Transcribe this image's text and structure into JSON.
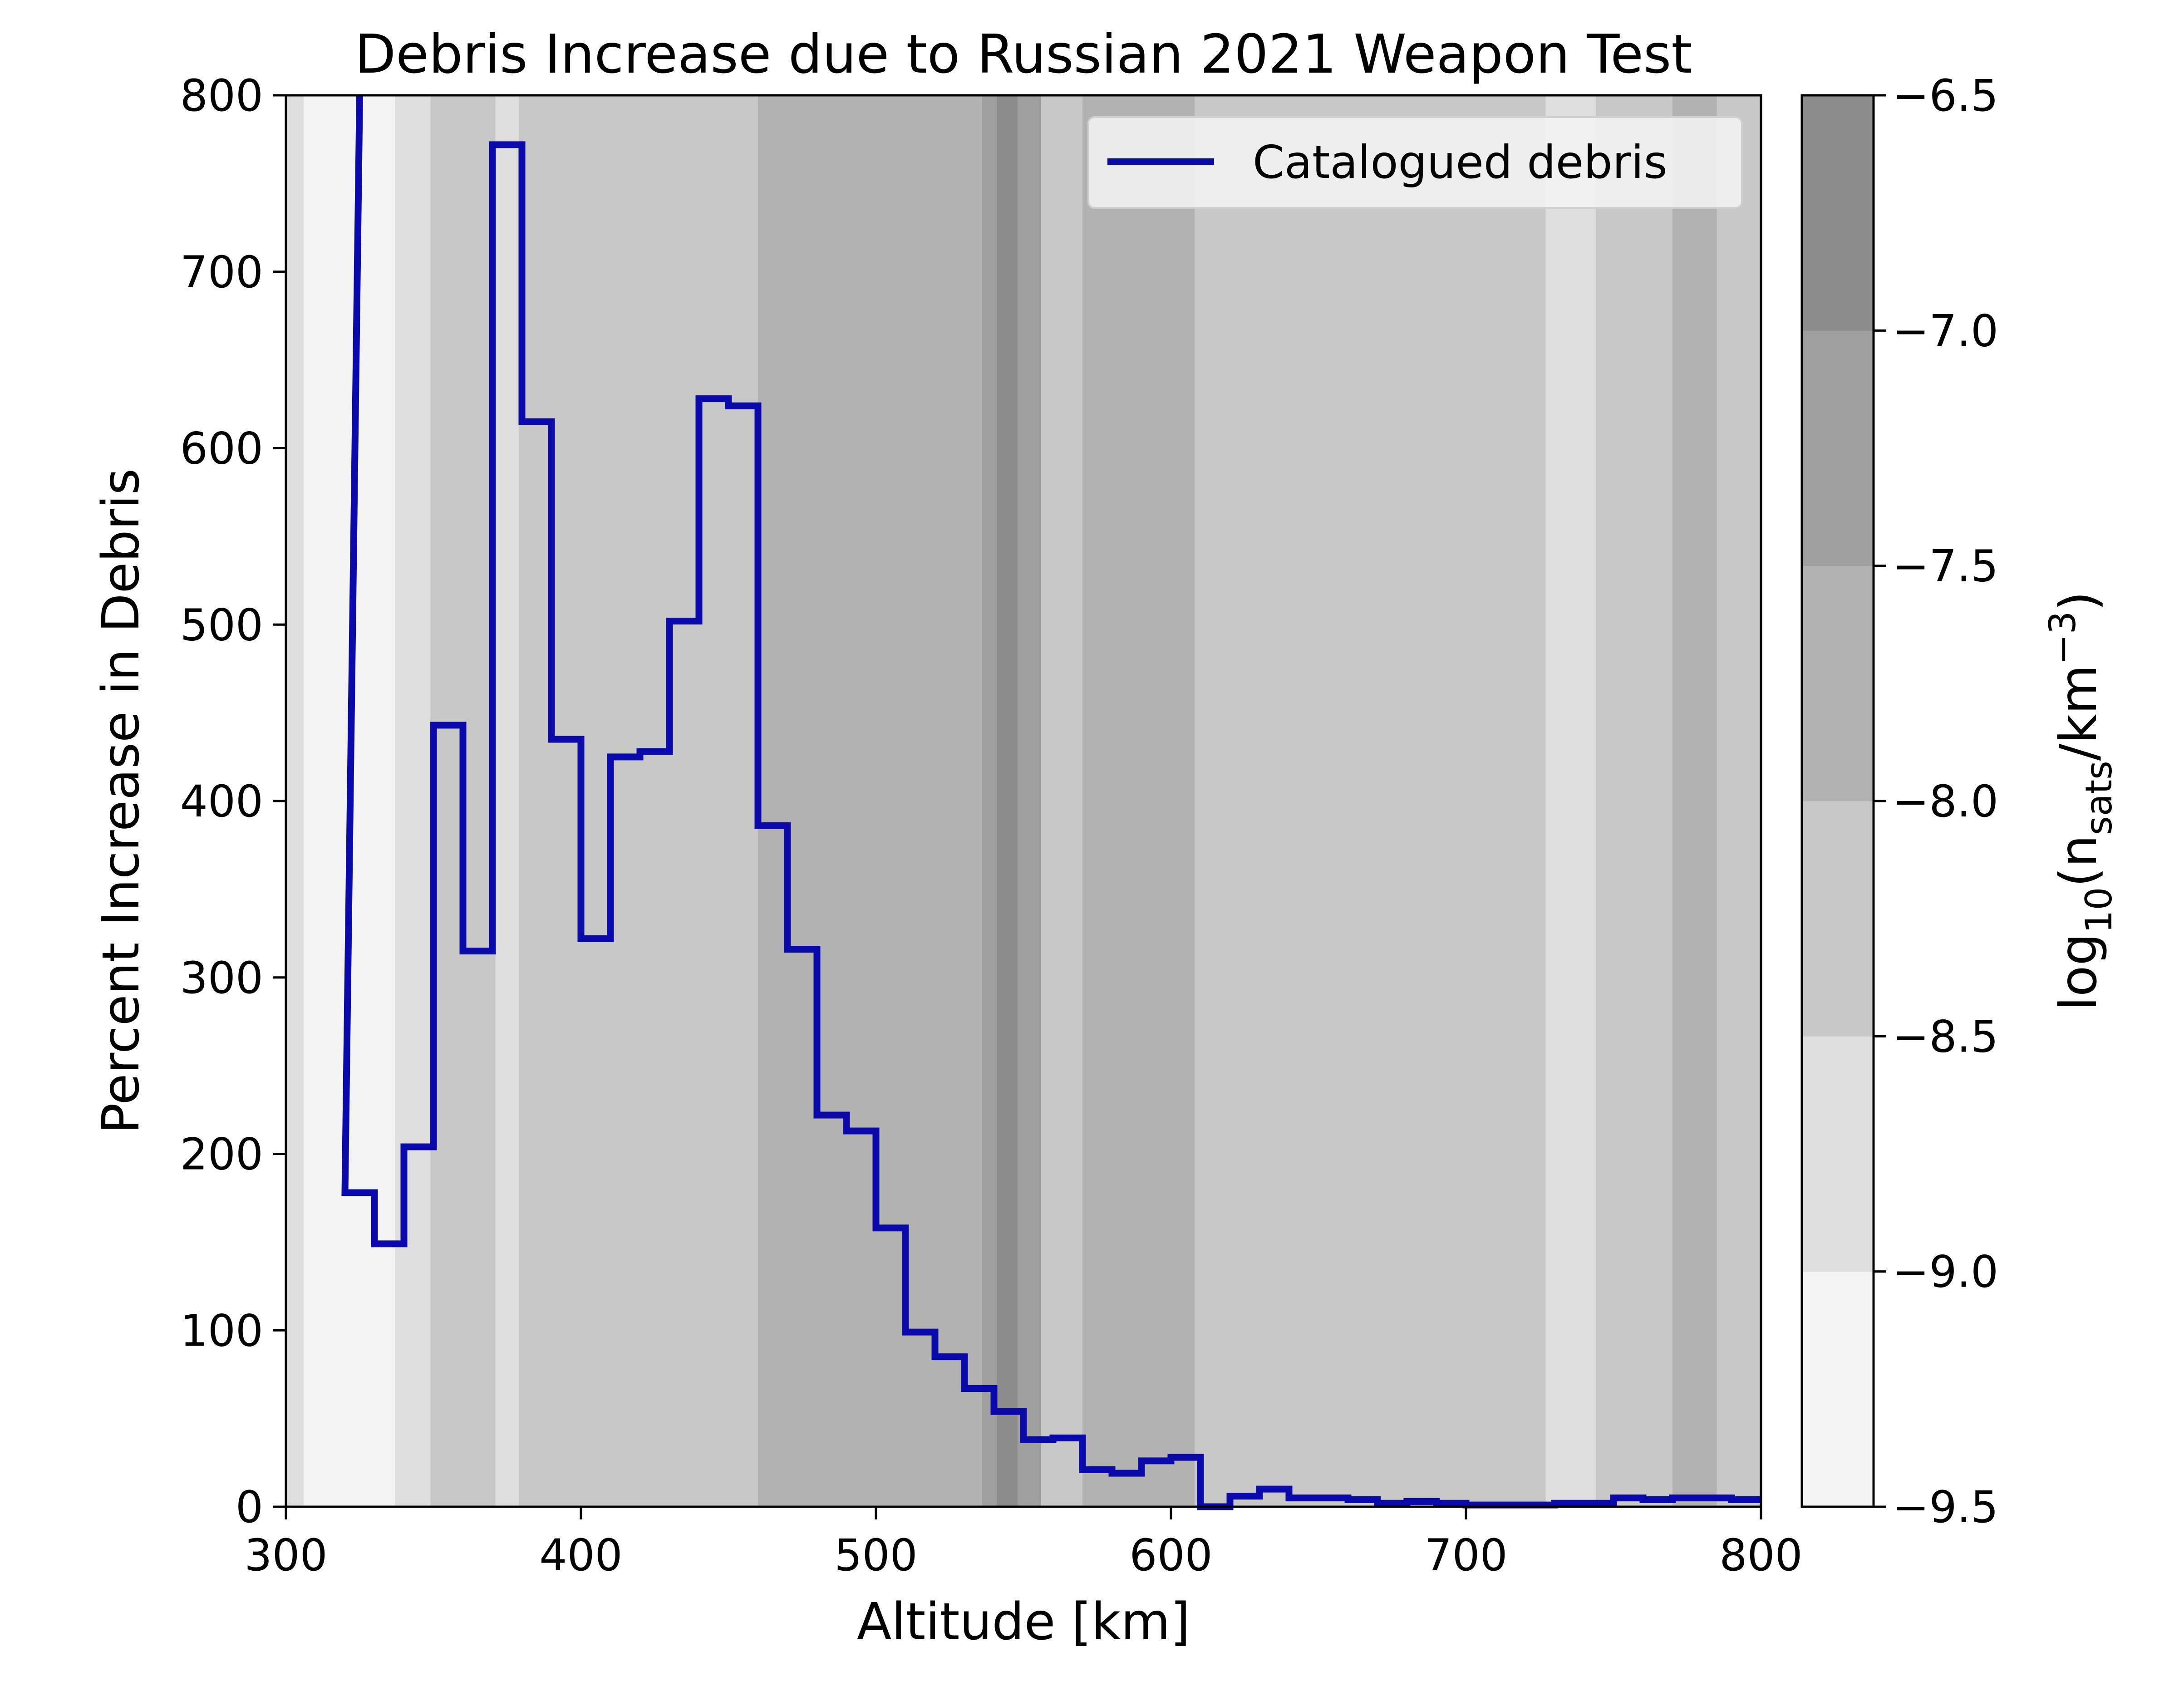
{
  "chart_data": {
    "type": "line",
    "title": "Debris Increase due to Russian 2021 Weapon Test",
    "xlabel": "Altitude [km]",
    "ylabel": "Percent Increase in Debris",
    "xlim": [
      300,
      800
    ],
    "ylim": [
      0,
      800
    ],
    "x_ticks": [
      300,
      400,
      500,
      600,
      700,
      800
    ],
    "y_ticks": [
      0,
      100,
      200,
      300,
      400,
      500,
      600,
      700,
      800
    ],
    "grid": false,
    "legend_position": "top-right",
    "series": [
      {
        "name": "Catalogued debris",
        "color": "#0a0aaa",
        "style": "step",
        "x": [
          325,
          335,
          345,
          355,
          365,
          375,
          385,
          395,
          405,
          415,
          425,
          435,
          445,
          455,
          465,
          475,
          485,
          495,
          505,
          515,
          525,
          535,
          545,
          555,
          565,
          575,
          585,
          595,
          605,
          615,
          625,
          635,
          645,
          655,
          665,
          675,
          685,
          695,
          705,
          715,
          725,
          735,
          745,
          755,
          765,
          775,
          785,
          795
        ],
        "y": [
          178,
          149,
          204,
          443,
          315,
          772,
          615,
          435,
          322,
          425,
          428,
          502,
          628,
          624,
          386,
          316,
          222,
          213,
          158,
          99,
          85,
          67,
          54,
          38,
          39,
          21,
          19,
          26,
          28,
          0,
          6,
          10,
          5,
          5,
          4,
          2,
          3,
          2,
          1,
          1,
          1,
          2,
          2,
          5,
          4,
          5,
          5,
          4
        ],
        "off_scale_start": {
          "x": 300,
          "x_end": 325,
          "y": 800
        }
      }
    ],
    "background_density": {
      "cmap": "greys",
      "bands": [
        {
          "x0": 300,
          "x1": 306,
          "level": -9.0
        },
        {
          "x0": 306,
          "x1": 337,
          "level": -9.5
        },
        {
          "x0": 337,
          "x1": 349,
          "level": -9.0
        },
        {
          "x0": 349,
          "x1": 371,
          "level": -8.5
        },
        {
          "x0": 371,
          "x1": 379,
          "level": -9.0
        },
        {
          "x0": 379,
          "x1": 460,
          "level": -8.5
        },
        {
          "x0": 460,
          "x1": 536,
          "level": -8.0
        },
        {
          "x0": 536,
          "x1": 541,
          "level": -7.5
        },
        {
          "x0": 541,
          "x1": 548,
          "level": -7.0
        },
        {
          "x0": 548,
          "x1": 556,
          "level": -7.5
        },
        {
          "x0": 556,
          "x1": 570,
          "level": -8.5
        },
        {
          "x0": 570,
          "x1": 608,
          "level": -8.0
        },
        {
          "x0": 608,
          "x1": 727,
          "level": -8.5
        },
        {
          "x0": 727,
          "x1": 744,
          "level": -9.0
        },
        {
          "x0": 744,
          "x1": 770,
          "level": -8.5
        },
        {
          "x0": 770,
          "x1": 785,
          "level": -8.0
        },
        {
          "x0": 785,
          "x1": 800,
          "level": -8.5
        }
      ]
    },
    "colorbar": {
      "label": "log10(nsats/km−3)",
      "label_parts": {
        "base": "log",
        "sub1": "10",
        "open": "(n",
        "sub2": "sats",
        "mid": "/km",
        "sup": "−3",
        "close": ")"
      },
      "range": [
        -9.5,
        -6.5
      ],
      "ticks": [
        -9.5,
        -9.0,
        -8.5,
        -8.0,
        -7.5,
        -7.0,
        -6.5
      ],
      "tick_labels": [
        "−9.5",
        "−9.0",
        "−8.5",
        "−8.0",
        "−7.5",
        "−7.0",
        "−6.5"
      ],
      "levels": [
        {
          "from": -9.5,
          "to": -9.0,
          "color": "#f3f3f3"
        },
        {
          "from": -9.0,
          "to": -8.5,
          "color": "#dedede"
        },
        {
          "from": -8.5,
          "to": -8.0,
          "color": "#c8c8c8"
        },
        {
          "from": -8.0,
          "to": -7.5,
          "color": "#b2b2b2"
        },
        {
          "from": -7.5,
          "to": -7.0,
          "color": "#9f9f9f"
        },
        {
          "from": -7.0,
          "to": -6.5,
          "color": "#8c8c8c"
        }
      ]
    }
  }
}
